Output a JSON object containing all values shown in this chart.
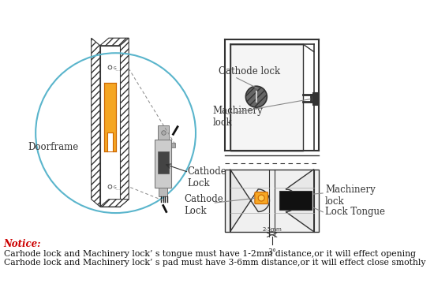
{
  "background_color": "#ffffff",
  "notice_color": "#cc0000",
  "notice_text": "Notice:",
  "notice_line1": "Carhode lock and Machinery lock’ s tongue must have 1-2mm distance,or it will effect opening",
  "notice_line2": "Carhode lock and Machinery lock’ s pad must have 3-6mm distance,or it will effect close smothly",
  "label_doorframe": "Doorframe",
  "label_cathode_lock_top": "Cathode lock",
  "label_machinery_lock_top": "Machinery\nlock",
  "label_cathode_lock_mid": "Cathode\nLock",
  "label_machinery_lock_bot": "Machinery\nlock",
  "label_lock_tongue": "Lock Tongue",
  "orange_color": "#f5a623",
  "blue_circle_color": "#5ab5cc",
  "line_color": "#333333",
  "gray_color": "#bbbbbb",
  "dark_color": "#222222"
}
